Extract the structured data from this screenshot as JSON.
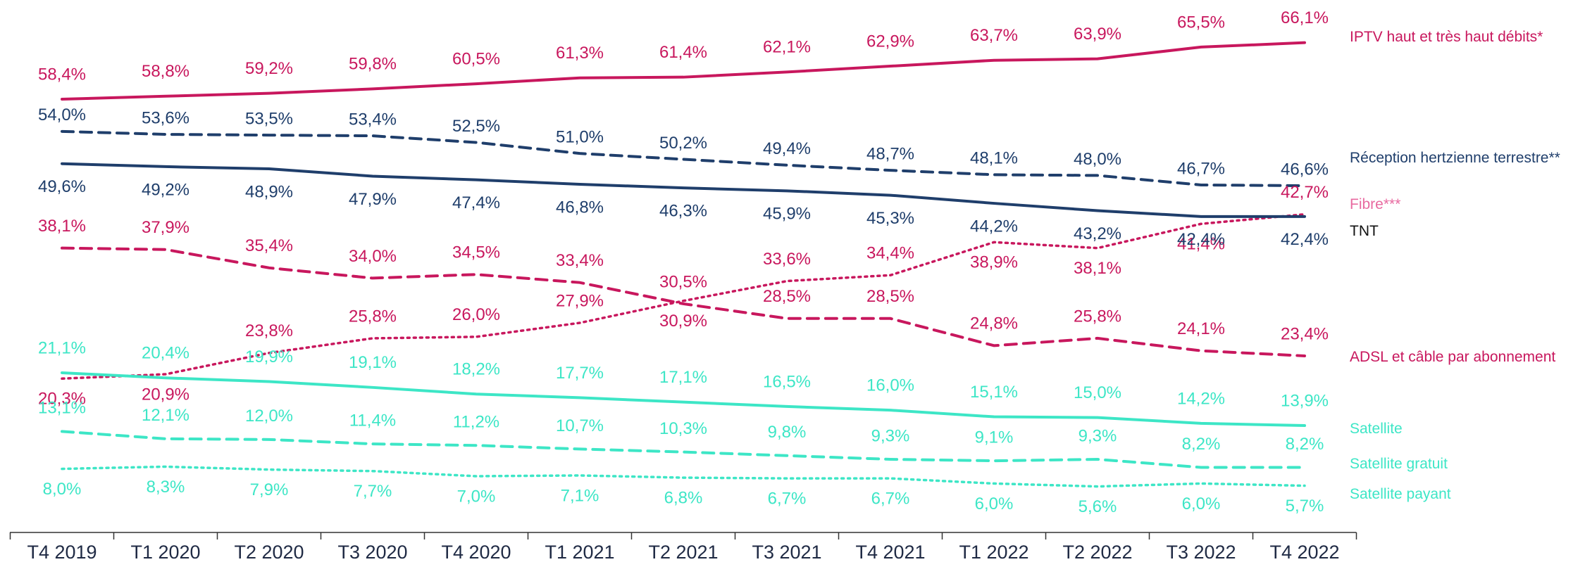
{
  "chart_data": {
    "type": "line",
    "categories": [
      "T4 2019",
      "T1 2020",
      "T2 2020",
      "T3 2020",
      "T4 2020",
      "T1 2021",
      "T2 2021",
      "T3 2021",
      "T4 2021",
      "T1 2022",
      "T2 2022",
      "T3 2022",
      "T4 2022"
    ],
    "ylim": [
      0,
      70
    ],
    "series": [
      {
        "name": "IPTV haut et très haut débits*",
        "color": "#c8175d",
        "style": "solid",
        "values": [
          58.4,
          58.8,
          59.2,
          59.8,
          60.5,
          61.3,
          61.4,
          62.1,
          62.9,
          63.7,
          63.9,
          65.5,
          66.1
        ],
        "value_labels": [
          "58,4%",
          "58,8%",
          "59,2%",
          "59,8%",
          "60,5%",
          "61,3%",
          "61,4%",
          "62,1%",
          "62,9%",
          "63,7%",
          "63,9%",
          "65,5%",
          "66,1%"
        ]
      },
      {
        "name": "Réception hertzienne terrestre**",
        "color": "#1f3e6b",
        "style": "dashed",
        "values": [
          54.0,
          53.6,
          53.5,
          53.4,
          52.5,
          51.0,
          50.2,
          49.4,
          48.7,
          48.1,
          48.0,
          46.7,
          46.6
        ],
        "value_labels": [
          "54,0%",
          "53,6%",
          "53,5%",
          "53,4%",
          "52,5%",
          "51,0%",
          "50,2%",
          "49,4%",
          "48,7%",
          "48,1%",
          "48,0%",
          "46,7%",
          "46,6%"
        ]
      },
      {
        "name": "Fibre***",
        "color": "#c8175d",
        "legend_color": "#e86aa0",
        "style": "dotted",
        "values": [
          20.3,
          20.9,
          23.8,
          25.8,
          26.0,
          27.9,
          30.9,
          33.6,
          34.4,
          38.9,
          38.1,
          41.4,
          42.7
        ],
        "value_labels": [
          "20,3%",
          "20,9%",
          "23,8%",
          "25,8%",
          "26,0%",
          "27,9%",
          "30,9%",
          "33,6%",
          "34,4%",
          "38,9%",
          "38,1%",
          "41,4%",
          "42,7%"
        ]
      },
      {
        "name": "TNT",
        "color": "#1f3e6b",
        "legend_color": "#111111",
        "style": "solid",
        "values": [
          49.6,
          49.2,
          48.9,
          47.9,
          47.4,
          46.8,
          46.3,
          45.9,
          45.3,
          44.2,
          43.2,
          42.4,
          42.4
        ],
        "value_labels": [
          "49,6%",
          "49,2%",
          "48,9%",
          "47,9%",
          "47,4%",
          "46,8%",
          "46,3%",
          "45,9%",
          "45,3%",
          "44,2%",
          "43,2%",
          "42,4%",
          "42,4%"
        ]
      },
      {
        "name": "ADSL et câble par abonnement",
        "color": "#c8175d",
        "style": "dashed",
        "values": [
          38.1,
          37.9,
          35.4,
          34.0,
          34.5,
          33.4,
          30.5,
          28.5,
          28.5,
          24.8,
          25.8,
          24.1,
          23.4
        ],
        "value_labels": [
          "38,1%",
          "37,9%",
          "35,4%",
          "34,0%",
          "34,5%",
          "33,4%",
          "30,5%",
          "28,5%",
          "28,5%",
          "24,8%",
          "25,8%",
          "24,1%",
          "23,4%"
        ]
      },
      {
        "name": "Satellite",
        "color": "#3de6c6",
        "style": "solid",
        "values": [
          21.1,
          20.4,
          19.9,
          19.1,
          18.2,
          17.7,
          17.1,
          16.5,
          16.0,
          15.1,
          15.0,
          14.2,
          13.9
        ],
        "value_labels": [
          "21,1%",
          "20,4%",
          "19,9%",
          "19,1%",
          "18,2%",
          "17,7%",
          "17,1%",
          "16,5%",
          "16,0%",
          "15,1%",
          "15,0%",
          "14,2%",
          "13,9%"
        ]
      },
      {
        "name": "Satellite gratuit",
        "color": "#3de6c6",
        "style": "dashed",
        "values": [
          13.1,
          12.1,
          12.0,
          11.4,
          11.2,
          10.7,
          10.3,
          9.8,
          9.3,
          9.1,
          9.3,
          8.2,
          8.2
        ],
        "value_labels": [
          "13,1%",
          "12,1%",
          "12,0%",
          "11,4%",
          "11,2%",
          "10,7%",
          "10,3%",
          "9,8%",
          "9,3%",
          "9,1%",
          "9,3%",
          "8,2%",
          "8,2%"
        ]
      },
      {
        "name": "Satellite payant",
        "color": "#3de6c6",
        "style": "dotted",
        "values": [
          8.0,
          8.3,
          7.9,
          7.7,
          7.0,
          7.1,
          6.8,
          6.7,
          6.7,
          6.0,
          5.6,
          6.0,
          5.7
        ],
        "value_labels": [
          "8,0%",
          "8,3%",
          "7,9%",
          "7,7%",
          "7,0%",
          "7,1%",
          "6,8%",
          "6,7%",
          "6,7%",
          "6,0%",
          "5,6%",
          "6,0%",
          "5,7%"
        ]
      }
    ]
  }
}
